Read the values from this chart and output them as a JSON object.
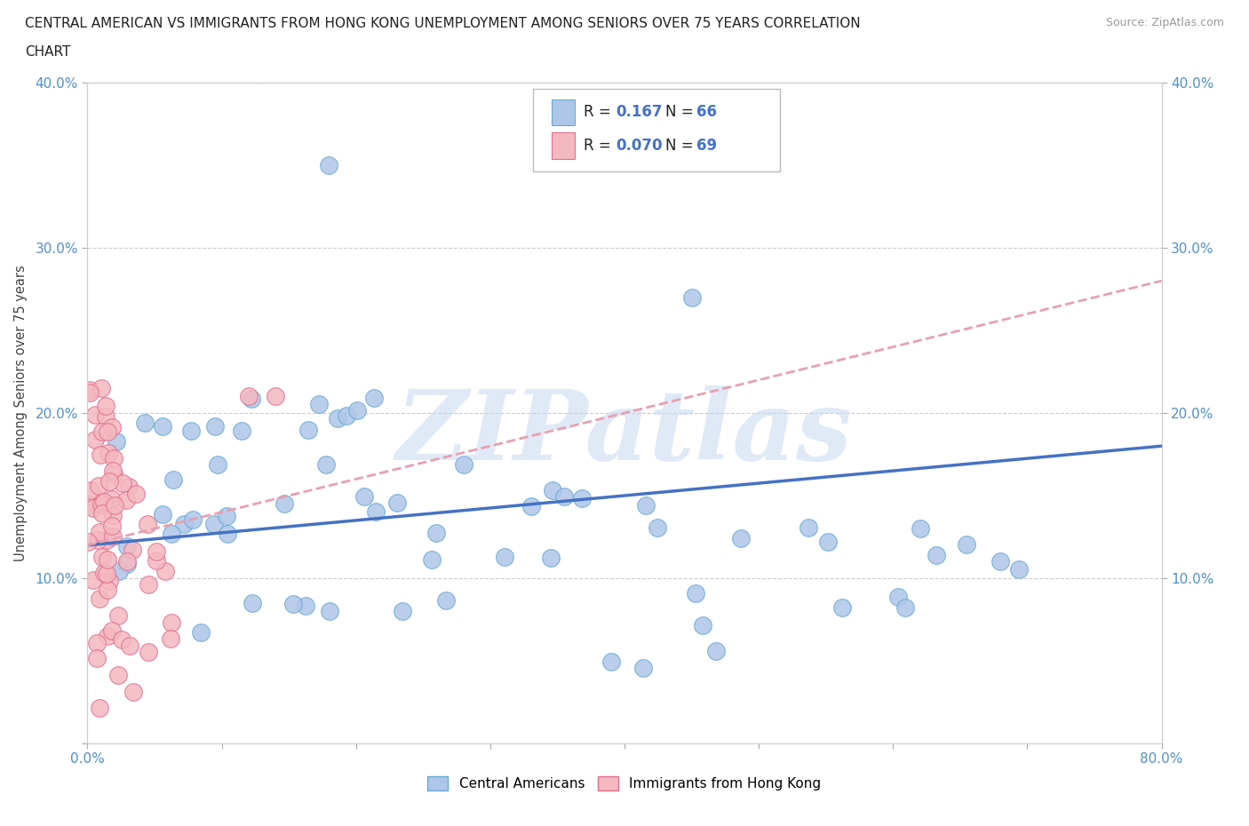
{
  "title_line1": "CENTRAL AMERICAN VS IMMIGRANTS FROM HONG KONG UNEMPLOYMENT AMONG SENIORS OVER 75 YEARS CORRELATION",
  "title_line2": "CHART",
  "source": "Source: ZipAtlas.com",
  "ylabel": "Unemployment Among Seniors over 75 years",
  "xlim": [
    0.0,
    0.8
  ],
  "ylim": [
    0.0,
    0.4
  ],
  "xticks": [
    0.0,
    0.1,
    0.2,
    0.3,
    0.4,
    0.5,
    0.6,
    0.7,
    0.8
  ],
  "xticklabels": [
    "0.0%",
    "",
    "",
    "",
    "",
    "",
    "",
    "",
    "80.0%"
  ],
  "yticks": [
    0.1,
    0.2,
    0.3,
    0.4
  ],
  "yticklabels": [
    "10.0%",
    "20.0%",
    "30.0%",
    "40.0%"
  ],
  "grid_color": "#cccccc",
  "blue_color": "#aec6e8",
  "blue_edge": "#6aaad4",
  "pink_color": "#f4b8c0",
  "pink_edge": "#e07090",
  "trend_blue": "#4472c4",
  "trend_pink": "#e8a0b0",
  "R_blue": 0.167,
  "N_blue": 66,
  "R_pink": 0.07,
  "N_pink": 69,
  "watermark": "ZIPatlas",
  "legend_label_blue": "Central Americans",
  "legend_label_pink": "Immigrants from Hong Kong",
  "blue_trend_x0": 0.0,
  "blue_trend_y0": 0.12,
  "blue_trend_x1": 0.8,
  "blue_trend_y1": 0.18,
  "pink_trend_x0": 0.0,
  "pink_trend_y0": 0.12,
  "pink_trend_x1": 0.8,
  "pink_trend_y1": 0.28
}
